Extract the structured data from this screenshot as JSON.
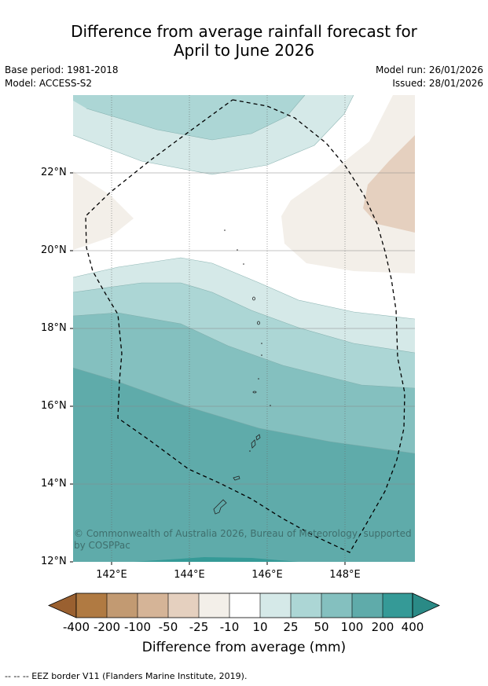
{
  "title": {
    "line1": "Difference from average rainfall forecast for",
    "line2": "April to June 2026"
  },
  "meta": {
    "base_period": "Base period: 1981-2018",
    "model": "Model: ACCESS-S2",
    "model_run": "Model run: 26/01/2026",
    "issued": "Issued: 28/01/2026"
  },
  "map": {
    "latitude_labels": [
      "22°N",
      "20°N",
      "18°N",
      "16°N",
      "14°N",
      "12°N"
    ],
    "longitude_labels": [
      "142°E",
      "144°E",
      "146°E",
      "148°E"
    ],
    "copyright": "© Commonwealth of Australia 2026, Bureau of Meteorology, supported by COSPPac",
    "gridline_color": "#888888",
    "boundary_style": "dashed"
  },
  "colorbar": {
    "ticks": [
      "-400",
      "-200",
      "-100",
      "-50",
      "-25",
      "-10",
      "10",
      "25",
      "50",
      "100",
      "200",
      "400"
    ],
    "colors": [
      "#b07a42",
      "#c29a72",
      "#d5b497",
      "#e5d0bf",
      "#f3efe9",
      "#ffffff",
      "#d5e9e8",
      "#acd6d5",
      "#84c0bf",
      "#5fabaa",
      "#359a97"
    ],
    "under_color": "#9a6030",
    "over_color": "#2a8a86",
    "label": "Difference from average (mm)"
  },
  "footnote": "--  --  -- EEZ border V11 (Flanders Marine Institute, 2019)."
}
